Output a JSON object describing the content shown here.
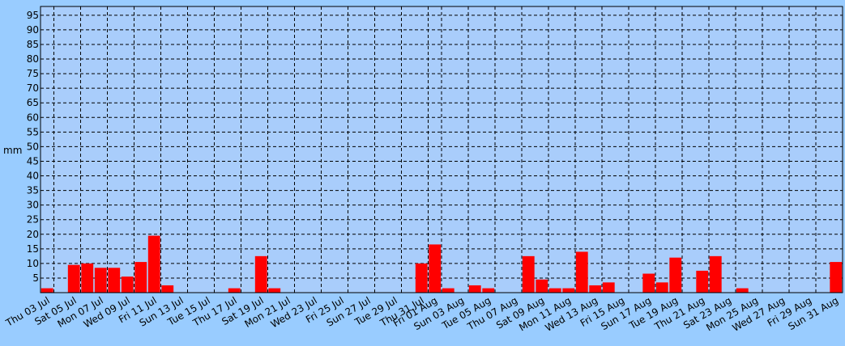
{
  "chart_data": {
    "type": "bar",
    "y_label": "mm",
    "color": "#ff0000",
    "categories": [
      "Thu 03 Jul",
      null,
      "Sat 05 Jul",
      null,
      "Mon 07 Jul",
      null,
      "Wed 09 Jul",
      null,
      "Fri 11 Jul",
      null,
      "Sun 13 Jul",
      null,
      "Tue 15 Jul",
      null,
      "Thu 17 Jul",
      null,
      "Sat 19 Jul",
      null,
      "Mon 21 Jul",
      null,
      "Wed 23 Jul",
      null,
      "Fri 25 Jul",
      null,
      "Sun 27 Jul",
      null,
      "Tue 29 Jul",
      null,
      "Thu 31 Jul",
      "Fri 01 Aug",
      null,
      "Sun 03 Aug",
      null,
      "Tue 05 Aug",
      null,
      "Thu 07 Aug",
      null,
      "Sat 09 Aug",
      null,
      "Mon 11 Aug",
      null,
      "Wed 13 Aug",
      null,
      "Fri 15 Aug",
      null,
      "Sun 17 Aug",
      null,
      "Tue 19 Aug",
      null,
      "Thu 21 Aug",
      null,
      "Sat 23 Aug",
      null,
      "Mon 25 Aug",
      null,
      "Wed 27 Aug",
      null,
      "Fri 29 Aug",
      null,
      "Sun 31 Aug"
    ],
    "values": [
      1.5,
      0,
      9.5,
      10,
      8.5,
      8.5,
      5.5,
      10.5,
      19.5,
      2.5,
      0,
      0,
      0,
      0,
      1.5,
      0,
      12.5,
      1.5,
      0,
      0,
      0,
      0,
      0,
      0,
      0,
      0,
      0,
      0,
      10,
      16.5,
      1.5,
      0,
      2.5,
      1.5,
      0,
      0,
      12.5,
      4.5,
      1.5,
      1.5,
      14,
      2.5,
      3.5,
      0,
      0,
      6.5,
      3.5,
      12,
      0,
      7.5,
      12.5,
      0,
      1.5,
      0,
      0,
      0,
      0,
      0,
      0,
      10.5
    ],
    "ylim": [
      0,
      98
    ],
    "yticks": [
      5,
      10,
      15,
      20,
      25,
      30,
      35,
      40,
      45,
      50,
      55,
      60,
      65,
      70,
      75,
      80,
      85,
      90,
      95
    ],
    "grid": true
  }
}
